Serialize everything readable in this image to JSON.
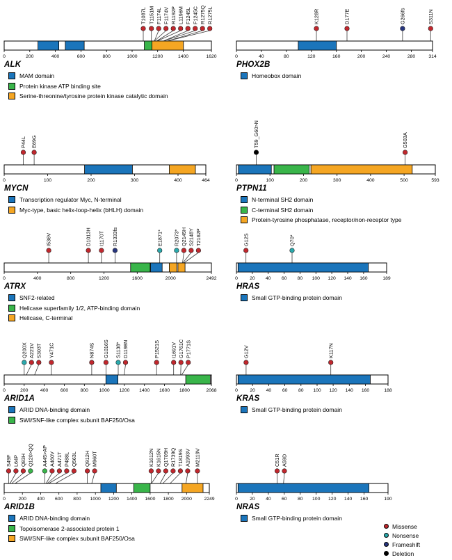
{
  "figure": {
    "background": "#ffffff",
    "colors": {
      "missense": "#c1272d",
      "nonsense": "#2aa9ac",
      "frameshift": "#27357e",
      "deletion": "#000000",
      "insertion": "#39b54a",
      "domain_blue": "#1b75bb",
      "domain_green": "#39b54a",
      "domain_orange": "#f5a623"
    },
    "type_legend": {
      "items": [
        {
          "label": "Missense",
          "type": "missense"
        },
        {
          "label": "Nonsense",
          "type": "nonsense"
        },
        {
          "label": "Frameshift",
          "type": "frameshift"
        },
        {
          "label": "Deletion",
          "type": "deletion"
        }
      ]
    }
  },
  "chart_data": [
    {
      "type": "lollipop",
      "gene": "ALK",
      "protein_length": 1620,
      "axis_ticks": [
        0,
        200,
        400,
        600,
        800,
        1000,
        1200,
        1400,
        1620
      ],
      "mutations": [
        {
          "label": "T1087L",
          "position": 1087,
          "type": "missense"
        },
        {
          "label": "T1151M",
          "position": 1151,
          "type": "missense"
        },
        {
          "label": "F1174L",
          "position": 1174,
          "type": "missense"
        },
        {
          "label": "F1174V",
          "position": 1174,
          "type": "missense"
        },
        {
          "label": "R1192P",
          "position": 1192,
          "type": "missense"
        },
        {
          "label": "L1196M",
          "position": 1196,
          "type": "missense"
        },
        {
          "label": "F1245L",
          "position": 1245,
          "type": "missense"
        },
        {
          "label": "F1245C",
          "position": 1245,
          "type": "missense"
        },
        {
          "label": "R1275Q",
          "position": 1275,
          "type": "missense"
        },
        {
          "label": "R1275L",
          "position": 1275,
          "type": "missense"
        }
      ],
      "domains": [
        {
          "start": 264,
          "end": 427,
          "color": "domain_blue"
        },
        {
          "start": 478,
          "end": 626,
          "color": "domain_blue"
        },
        {
          "start": 1096,
          "end": 1155,
          "color": "domain_green"
        },
        {
          "start": 1155,
          "end": 1401,
          "color": "domain_orange"
        }
      ],
      "domain_legend": [
        {
          "color": "domain_blue",
          "label": "MAM domain"
        },
        {
          "color": "domain_green",
          "label": "Protein kinase ATP binding site"
        },
        {
          "color": "domain_orange",
          "label": "Serine-threonine/tyrosine protein kinase catalytic domain"
        }
      ]
    },
    {
      "type": "lollipop",
      "gene": "PHOX2B",
      "protein_length": 314,
      "axis_ticks": [
        0,
        40,
        80,
        120,
        160,
        200,
        240,
        280,
        314
      ],
      "mutations": [
        {
          "label": "K128R",
          "position": 128,
          "type": "missense"
        },
        {
          "label": "D177E",
          "position": 177,
          "type": "missense"
        },
        {
          "label": "G266fs",
          "position": 266,
          "type": "frameshift"
        },
        {
          "label": "S311N",
          "position": 311,
          "type": "missense"
        }
      ],
      "domains": [
        {
          "start": 99,
          "end": 160,
          "color": "domain_blue"
        }
      ],
      "domain_legend": [
        {
          "color": "domain_blue",
          "label": "Homeobox domain"
        }
      ]
    },
    {
      "type": "lollipop",
      "gene": "MYCN",
      "protein_length": 464,
      "axis_ticks": [
        0,
        100,
        200,
        300,
        400,
        464
      ],
      "mutations": [
        {
          "label": "P44L",
          "position": 44,
          "type": "missense"
        },
        {
          "label": "E69G",
          "position": 69,
          "type": "missense"
        }
      ],
      "domains": [
        {
          "start": 185,
          "end": 295,
          "color": "domain_blue"
        },
        {
          "start": 380,
          "end": 440,
          "color": "domain_orange"
        }
      ],
      "domain_legend": [
        {
          "color": "domain_blue",
          "label": "Transcription regulator Myc, N-terminal"
        },
        {
          "color": "domain_orange",
          "label": "Myc-type, basic helix-loop-helix (bHLH) domain"
        }
      ]
    },
    {
      "type": "lollipop",
      "gene": "PTPN11",
      "protein_length": 593,
      "axis_ticks": [
        0,
        100,
        200,
        300,
        400,
        500,
        593
      ],
      "mutations": [
        {
          "label": "T59_G60>N",
          "position": 59,
          "type": "deletion"
        },
        {
          "label": "G503A",
          "position": 503,
          "type": "missense"
        }
      ],
      "domains": [
        {
          "start": 6,
          "end": 104,
          "color": "domain_blue"
        },
        {
          "start": 112,
          "end": 217,
          "color": "domain_green"
        },
        {
          "start": 222,
          "end": 524,
          "color": "domain_orange"
        }
      ],
      "domain_legend": [
        {
          "color": "domain_blue",
          "label": "N-terminal SH2 domain"
        },
        {
          "color": "domain_green",
          "label": "C-terminal SH2 domain"
        },
        {
          "color": "domain_orange",
          "label": "Protein-tyrosine phosphatase, receptor/non-receptor type"
        }
      ]
    },
    {
      "type": "lollipop",
      "gene": "ATRX",
      "protein_length": 2492,
      "axis_ticks": [
        0,
        400,
        800,
        1200,
        1600,
        2000,
        2492
      ],
      "mutations": [
        {
          "label": "I536V",
          "position": 536,
          "type": "missense"
        },
        {
          "label": "D1013H",
          "position": 1013,
          "type": "missense"
        },
        {
          "label": "I1170T",
          "position": 1170,
          "type": "missense"
        },
        {
          "label": "R1333fs",
          "position": 1333,
          "type": "frameshift"
        },
        {
          "label": "E1871*",
          "position": 1871,
          "type": "nonsense"
        },
        {
          "label": "R2073*",
          "position": 2073,
          "type": "nonsense"
        },
        {
          "label": "Q2145H",
          "position": 2145,
          "type": "missense"
        },
        {
          "label": "S2148Y",
          "position": 2148,
          "type": "missense"
        },
        {
          "label": "T2162P",
          "position": 2162,
          "type": "missense"
        }
      ],
      "domains": [
        {
          "start": 1520,
          "end": 1755,
          "color": "domain_green"
        },
        {
          "start": 1760,
          "end": 1900,
          "color": "domain_blue"
        },
        {
          "start": 1985,
          "end": 2075,
          "color": "domain_orange"
        },
        {
          "start": 2090,
          "end": 2175,
          "color": "domain_orange"
        }
      ],
      "domain_legend": [
        {
          "color": "domain_blue",
          "label": "SNF2-related"
        },
        {
          "color": "domain_green",
          "label": "Helicase superfamily 1/2, ATP-binding domain"
        },
        {
          "color": "domain_orange",
          "label": "Helicase, C-terminal"
        }
      ]
    },
    {
      "type": "lollipop",
      "gene": "HRAS",
      "protein_length": 189,
      "axis_ticks": [
        0,
        20,
        40,
        60,
        80,
        100,
        120,
        140,
        160,
        189
      ],
      "mutations": [
        {
          "label": "G12S",
          "position": 12,
          "type": "missense"
        },
        {
          "label": "Q70*",
          "position": 70,
          "type": "nonsense"
        }
      ],
      "domains": [
        {
          "start": 2,
          "end": 166,
          "color": "domain_blue"
        }
      ],
      "domain_legend": [
        {
          "color": "domain_blue",
          "label": "Small GTP-binding protein domain"
        }
      ]
    },
    {
      "type": "lollipop",
      "gene": "ARID1A",
      "protein_length": 2068,
      "axis_ticks": [
        0,
        200,
        400,
        600,
        800,
        1000,
        1200,
        1400,
        1600,
        1800,
        2068
      ],
      "mutations": [
        {
          "label": "Q200X",
          "position": 200,
          "type": "nonsense"
        },
        {
          "label": "A221V",
          "position": 221,
          "type": "missense"
        },
        {
          "label": "S303T",
          "position": 303,
          "type": "missense"
        },
        {
          "label": "Y471C",
          "position": 471,
          "type": "missense"
        },
        {
          "label": "N874S",
          "position": 874,
          "type": "missense"
        },
        {
          "label": "G1016S",
          "position": 1016,
          "type": "missense"
        },
        {
          "label": "S1138*",
          "position": 1138,
          "type": "nonsense"
        },
        {
          "label": "D1198N",
          "position": 1198,
          "type": "missense"
        },
        {
          "label": "P1521S",
          "position": 1521,
          "type": "missense"
        },
        {
          "label": "I1691V",
          "position": 1691,
          "type": "missense"
        },
        {
          "label": "G1761C",
          "position": 1761,
          "type": "missense"
        },
        {
          "label": "P1771S",
          "position": 1771,
          "type": "missense"
        }
      ],
      "domains": [
        {
          "start": 1015,
          "end": 1135,
          "color": "domain_blue"
        },
        {
          "start": 1812,
          "end": 2057,
          "color": "domain_green"
        }
      ],
      "domain_legend": [
        {
          "color": "domain_blue",
          "label": "ARID DNA-binding domain"
        },
        {
          "color": "domain_green",
          "label": "SWI/SNF-like complex subunit BAF250/Osa"
        }
      ]
    },
    {
      "type": "lollipop",
      "gene": "KRAS",
      "protein_length": 188,
      "axis_ticks": [
        0,
        20,
        40,
        60,
        80,
        100,
        120,
        140,
        160,
        188
      ],
      "mutations": [
        {
          "label": "G12V",
          "position": 12,
          "type": "missense"
        },
        {
          "label": "K117N",
          "position": 117,
          "type": "missense"
        }
      ],
      "domains": [
        {
          "start": 2,
          "end": 166,
          "color": "domain_blue"
        }
      ],
      "domain_legend": [
        {
          "color": "domain_blue",
          "label": "Small GTP-binding protein domain"
        }
      ]
    },
    {
      "type": "lollipop",
      "gene": "ARID1B",
      "protein_length": 2249,
      "axis_ticks": [
        0,
        200,
        400,
        600,
        800,
        1000,
        1200,
        1400,
        1600,
        1800,
        2000,
        2249
      ],
      "mutations": [
        {
          "label": "S49F",
          "position": 49,
          "type": "missense"
        },
        {
          "label": "L64P",
          "position": 64,
          "type": "missense"
        },
        {
          "label": "Q83H",
          "position": 83,
          "type": "missense"
        },
        {
          "label": "Q120>QQ",
          "position": 120,
          "type": "insertion"
        },
        {
          "label": "A445>AP",
          "position": 445,
          "type": "insertion"
        },
        {
          "label": "A460V",
          "position": 460,
          "type": "missense"
        },
        {
          "label": "A471T",
          "position": 471,
          "type": "missense"
        },
        {
          "label": "P488L",
          "position": 488,
          "type": "missense"
        },
        {
          "label": "Q563L",
          "position": 563,
          "type": "missense"
        },
        {
          "label": "Q912H",
          "position": 912,
          "type": "missense"
        },
        {
          "label": "M960T",
          "position": 960,
          "type": "missense"
        },
        {
          "label": "K1612N",
          "position": 1612,
          "type": "missense"
        },
        {
          "label": "K1615N",
          "position": 1615,
          "type": "missense"
        },
        {
          "label": "Q1709H",
          "position": 1709,
          "type": "missense"
        },
        {
          "label": "R1739Q",
          "position": 1739,
          "type": "missense"
        },
        {
          "label": "T1819S",
          "position": 1819,
          "type": "missense"
        },
        {
          "label": "A1993V",
          "position": 1993,
          "type": "missense"
        },
        {
          "label": "M2119V",
          "position": 2119,
          "type": "missense"
        }
      ],
      "domains": [
        {
          "start": 1060,
          "end": 1230,
          "color": "domain_blue"
        },
        {
          "start": 1420,
          "end": 1600,
          "color": "domain_green"
        },
        {
          "start": 1950,
          "end": 2180,
          "color": "domain_orange"
        }
      ],
      "domain_legend": [
        {
          "color": "domain_blue",
          "label": "ARID DNA-binding domain"
        },
        {
          "color": "domain_green",
          "label": "Topoisomerase 2-associated protein 1"
        },
        {
          "color": "domain_orange",
          "label": "SWI/SNF-like complex subunit BAF250/Osa"
        }
      ]
    },
    {
      "type": "lollipop",
      "gene": "NRAS",
      "protein_length": 190,
      "axis_ticks": [
        0,
        20,
        40,
        60,
        80,
        100,
        120,
        140,
        160,
        190
      ],
      "mutations": [
        {
          "label": "C51R",
          "position": 51,
          "type": "missense"
        },
        {
          "label": "A59D",
          "position": 59,
          "type": "missense"
        }
      ],
      "domains": [
        {
          "start": 2,
          "end": 166,
          "color": "domain_blue"
        }
      ],
      "domain_legend": [
        {
          "color": "domain_blue",
          "label": "Small GTP-binding protein domain"
        }
      ]
    }
  ]
}
